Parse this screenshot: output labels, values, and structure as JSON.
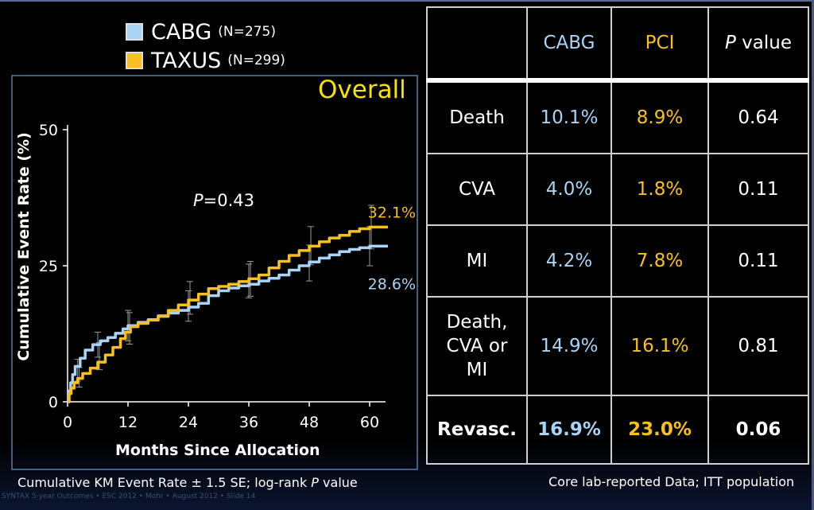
{
  "legend": [
    {
      "name": "CABG",
      "n": "(N=275)",
      "color": "#a9d4f5"
    },
    {
      "name": "TAXUS",
      "n": "(N=299)",
      "color": "#f7c021"
    }
  ],
  "panel_title": "Overall",
  "pvalue_note": {
    "label": "P",
    "value": "=0.43"
  },
  "chart_data": {
    "type": "line",
    "title": "Overall",
    "xlabel": "Months Since Allocation",
    "ylabel": "Cumulative Event Rate (%)",
    "xlim": [
      0,
      60
    ],
    "ylim": [
      0,
      50
    ],
    "xticks": [
      "0",
      "12",
      "24",
      "36",
      "48",
      "60"
    ],
    "xtick_values": [
      0,
      12,
      24,
      36,
      48,
      60
    ],
    "yticks": [
      "0",
      "25",
      "50"
    ],
    "ytick_values": [
      0,
      25,
      50
    ],
    "grid": false,
    "series": [
      {
        "name": "CABG",
        "color": "#a9d4f5",
        "end_label": "28.6%",
        "points": [
          [
            0,
            0
          ],
          [
            0.3,
            2
          ],
          [
            0.6,
            3.5
          ],
          [
            1,
            5
          ],
          [
            1.5,
            6.5
          ],
          [
            2.5,
            8
          ],
          [
            3.5,
            9.5
          ],
          [
            5,
            10.5
          ],
          [
            6.5,
            11.2
          ],
          [
            8,
            11.8
          ],
          [
            9.5,
            12.6
          ],
          [
            11,
            13.4
          ],
          [
            12,
            14
          ],
          [
            14,
            14.6
          ],
          [
            16,
            15.1
          ],
          [
            18,
            15.7
          ],
          [
            20,
            16.3
          ],
          [
            22,
            16.8
          ],
          [
            24,
            17.4
          ],
          [
            26,
            18.1
          ],
          [
            28,
            19.5
          ],
          [
            30,
            20.4
          ],
          [
            32,
            20.9
          ],
          [
            34,
            21.3
          ],
          [
            36,
            21.6
          ],
          [
            38,
            22.2
          ],
          [
            40,
            22.7
          ],
          [
            42,
            23.3
          ],
          [
            44,
            24.2
          ],
          [
            46,
            25
          ],
          [
            48,
            25.7
          ],
          [
            50,
            26.4
          ],
          [
            52,
            27
          ],
          [
            54,
            27.6
          ],
          [
            56,
            28
          ],
          [
            58,
            28.3
          ],
          [
            60,
            28.6
          ]
        ],
        "errorbars": [
          [
            2,
            5.8,
            2
          ],
          [
            6,
            10.5,
            2.3
          ],
          [
            12,
            14,
            2.8
          ],
          [
            24,
            17.6,
            2.8
          ],
          [
            36,
            22.2,
            3.1
          ],
          [
            48,
            25.5,
            3.3
          ],
          [
            60,
            28.6,
            3.6
          ]
        ]
      },
      {
        "name": "TAXUS",
        "color": "#f7c021",
        "end_label": "32.1%",
        "points": [
          [
            0,
            0
          ],
          [
            0.3,
            1.5
          ],
          [
            0.7,
            2.5
          ],
          [
            1.3,
            3.5
          ],
          [
            2,
            4.3
          ],
          [
            3,
            5.2
          ],
          [
            4.5,
            6.2
          ],
          [
            6,
            7.3
          ],
          [
            7.5,
            8.6
          ],
          [
            9,
            10
          ],
          [
            10.5,
            11.6
          ],
          [
            11.5,
            12.8
          ],
          [
            12.5,
            13.8
          ],
          [
            14,
            14.4
          ],
          [
            16,
            15
          ],
          [
            18,
            15.8
          ],
          [
            20,
            16.8
          ],
          [
            22,
            17.8
          ],
          [
            24,
            18.7
          ],
          [
            26,
            19.8
          ],
          [
            28,
            20.8
          ],
          [
            30,
            21.2
          ],
          [
            32,
            21.6
          ],
          [
            34,
            22.1
          ],
          [
            36,
            22.6
          ],
          [
            38,
            23.3
          ],
          [
            40,
            24.6
          ],
          [
            42,
            25.8
          ],
          [
            44,
            26.9
          ],
          [
            46,
            27.8
          ],
          [
            48,
            28.6
          ],
          [
            50,
            29.4
          ],
          [
            52,
            30.1
          ],
          [
            54,
            30.6
          ],
          [
            56,
            31.3
          ],
          [
            58,
            31.8
          ],
          [
            60,
            32.1
          ]
        ],
        "errorbars": [
          [
            2,
            4.5,
            1.8
          ],
          [
            6,
            8.4,
            2.5
          ],
          [
            12,
            13.5,
            2.9
          ],
          [
            24,
            19.1,
            3
          ],
          [
            36,
            22.6,
            3.2
          ],
          [
            48,
            28.7,
            3.5
          ],
          [
            60,
            32.1,
            4
          ]
        ]
      }
    ]
  },
  "footnote_left": {
    "pre": "Cumulative KM Event Rate ± 1.5 SE; log-rank ",
    "italic": "P",
    "post": " value"
  },
  "footnote_right": "Core lab-reported Data; ITT population",
  "tiny_footer": "SYNTAX 5-year Outcomes  •  ESC 2012  •  Mohr  •  August 2012  •  Slide 14",
  "table": {
    "headers": {
      "cabg": "CABG",
      "pci": "PCI",
      "p_italic": "P",
      "p_rest": " value"
    },
    "rows": [
      {
        "endpoint": "Death",
        "cabg": "10.1%",
        "pci": "8.9%",
        "p": "0.64"
      },
      {
        "endpoint": "CVA",
        "cabg": "4.0%",
        "pci": "1.8%",
        "p": "0.11"
      },
      {
        "endpoint": "MI",
        "cabg": "4.2%",
        "pci": "7.8%",
        "p": "0.11"
      },
      {
        "endpoint_lines": [
          "Death,",
          "CVA or",
          "MI"
        ],
        "cabg": "14.9%",
        "pci": "16.1%",
        "p": "0.81"
      },
      {
        "endpoint": "Revasc.",
        "cabg": "16.9%",
        "pci": "23.0%",
        "p": "0.06"
      }
    ]
  }
}
